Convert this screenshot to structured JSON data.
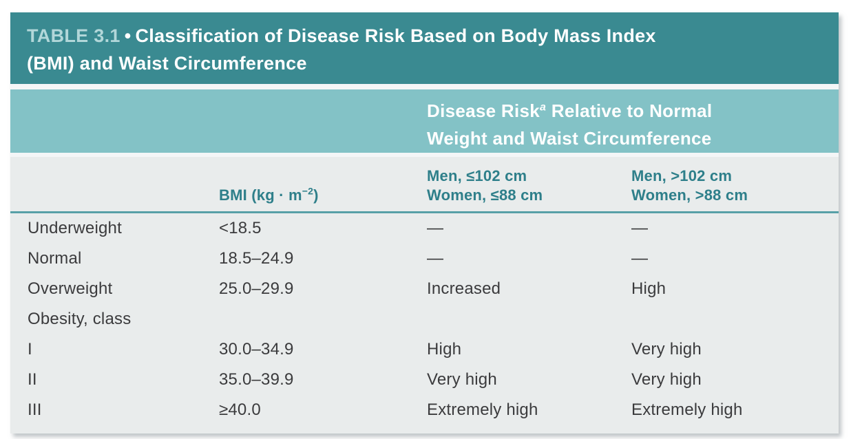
{
  "title": {
    "label": "TABLE 3.1",
    "bullet": "•",
    "line1": "Classification of Disease Risk Based on Body Mass Index",
    "line2": "(BMI) and Waist Circumference"
  },
  "spanner": {
    "line1_pre": "Disease Risk",
    "superscript": "a",
    "line1_post": " Relative to Normal",
    "line2": "Weight and Waist Circumference"
  },
  "columns": {
    "category": "",
    "bmi": {
      "pre": "BMI (kg · m",
      "superscript": "−2",
      "post": ")"
    },
    "risk_normal": {
      "line1": "Men, ≤102 cm",
      "line2": "Women, ≤88 cm"
    },
    "risk_elevated": {
      "line1": "Men, >102 cm",
      "line2": "Women, >88 cm"
    }
  },
  "rows": [
    {
      "category": "Underweight",
      "bmi": "<18.5",
      "risk_normal": "—",
      "risk_elevated": "—"
    },
    {
      "category": "Normal",
      "bmi": "18.5–24.9",
      "risk_normal": "—",
      "risk_elevated": "—"
    },
    {
      "category": "Overweight",
      "bmi": "25.0–29.9",
      "risk_normal": "Increased",
      "risk_elevated": "High"
    },
    {
      "category": "Obesity, class",
      "bmi": "",
      "risk_normal": "",
      "risk_elevated": ""
    },
    {
      "category": "I",
      "bmi": "30.0–34.9",
      "risk_normal": "High",
      "risk_elevated": "Very high"
    },
    {
      "category": "II",
      "bmi": "35.0–39.9",
      "risk_normal": "Very high",
      "risk_elevated": "Very high"
    },
    {
      "category": "III",
      "bmi": "≥40.0",
      "risk_normal": "Extremely high",
      "risk_elevated": "Extremely high"
    }
  ],
  "colors": {
    "band_dark_teal": "#3A8A91",
    "band_light_teal": "#83C2C6",
    "table_background": "#E9ECEC",
    "heading_teal": "#2E7F8A",
    "title_label_teal": "#B2D7D9",
    "rule_teal": "#57A0A7",
    "body_text": "#3B3B3D"
  }
}
